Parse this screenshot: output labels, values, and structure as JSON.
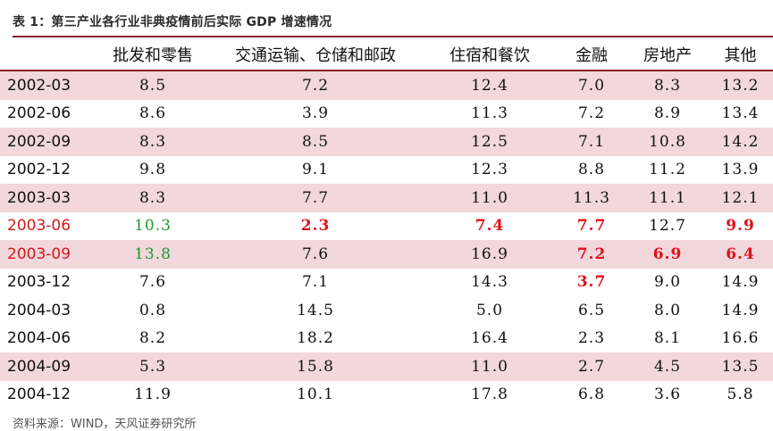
{
  "caption": "表 1：第三产业各行业非典疫情前后实际 GDP 增速情况",
  "source": "资料来源：WIND，天风证券研究所",
  "colors": {
    "accent": "#8a1c2b",
    "shade": "#f2d7dc",
    "red": "#e0101a",
    "green": "#1a9a2a"
  },
  "table": {
    "headers": [
      "",
      "批发和零售",
      "交通运输、仓储和邮政",
      "住宿和餐饮",
      "金融",
      "房地产",
      "其他"
    ],
    "rows": [
      {
        "date": "2002-03",
        "values": [
          "8.5",
          "7.2",
          "12.4",
          "7.0",
          "8.3",
          "13.2"
        ],
        "shaded": true,
        "alert": false,
        "red": [],
        "green": []
      },
      {
        "date": "2002-06",
        "values": [
          "8.6",
          "3.9",
          "11.3",
          "7.2",
          "8.9",
          "13.4"
        ],
        "shaded": false,
        "alert": false,
        "red": [],
        "green": []
      },
      {
        "date": "2002-09",
        "values": [
          "8.3",
          "8.5",
          "12.5",
          "7.1",
          "10.8",
          "14.2"
        ],
        "shaded": true,
        "alert": false,
        "red": [],
        "green": []
      },
      {
        "date": "2002-12",
        "values": [
          "9.8",
          "9.1",
          "12.3",
          "8.8",
          "11.2",
          "13.9"
        ],
        "shaded": false,
        "alert": false,
        "red": [],
        "green": []
      },
      {
        "date": "2003-03",
        "values": [
          "8.3",
          "7.7",
          "11.0",
          "11.3",
          "11.1",
          "12.1"
        ],
        "shaded": true,
        "alert": false,
        "red": [],
        "green": []
      },
      {
        "date": "2003-06",
        "values": [
          "10.3",
          "2.3",
          "7.4",
          "7.7",
          "12.7",
          "9.9"
        ],
        "shaded": false,
        "alert": true,
        "red": [
          1,
          2,
          3,
          5
        ],
        "green": [
          0
        ]
      },
      {
        "date": "2003-09",
        "values": [
          "13.8",
          "7.6",
          "16.9",
          "7.2",
          "6.9",
          "6.4"
        ],
        "shaded": true,
        "alert": true,
        "red": [
          3,
          4,
          5
        ],
        "green": [
          0
        ]
      },
      {
        "date": "2003-12",
        "values": [
          "7.6",
          "7.1",
          "14.3",
          "3.7",
          "9.0",
          "14.9"
        ],
        "shaded": false,
        "alert": false,
        "red": [
          3
        ],
        "green": []
      },
      {
        "date": "2004-03",
        "values": [
          "0.8",
          "14.5",
          "5.0",
          "6.5",
          "8.0",
          "14.9"
        ],
        "shaded": false,
        "alert": false,
        "red": [],
        "green": []
      },
      {
        "date": "2004-06",
        "values": [
          "8.2",
          "18.2",
          "16.4",
          "2.3",
          "8.1",
          "16.6"
        ],
        "shaded": false,
        "alert": false,
        "red": [],
        "green": []
      },
      {
        "date": "2004-09",
        "values": [
          "5.3",
          "15.8",
          "11.0",
          "2.7",
          "4.5",
          "13.5"
        ],
        "shaded": true,
        "alert": false,
        "red": [],
        "green": []
      },
      {
        "date": "2004-12",
        "values": [
          "11.9",
          "10.1",
          "17.8",
          "6.8",
          "3.6",
          "5.8"
        ],
        "shaded": false,
        "alert": false,
        "red": [],
        "green": []
      }
    ]
  }
}
